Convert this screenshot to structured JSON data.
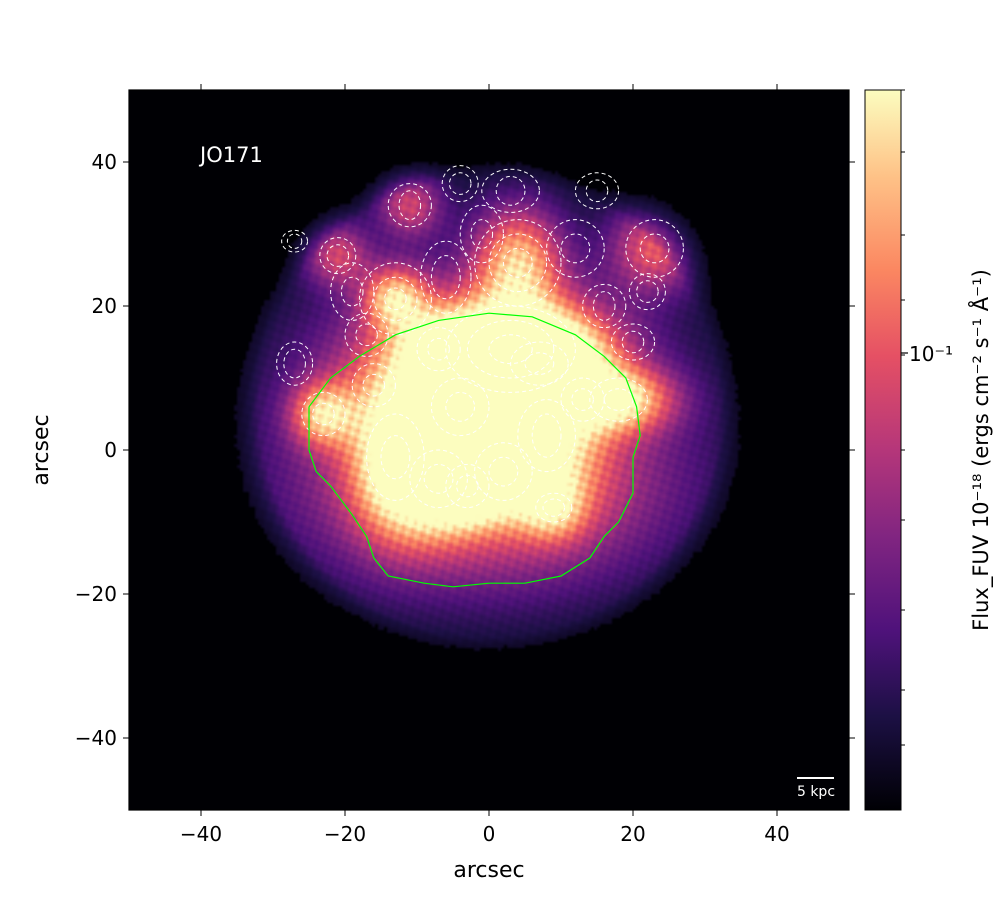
{
  "chart_data": {
    "type": "heatmap",
    "title": "",
    "label": "JO171",
    "xlabel": "arcsec",
    "ylabel": "arcsec",
    "xlim": [
      -50,
      50
    ],
    "ylim": [
      -50,
      50
    ],
    "xticks": [
      -40,
      -20,
      0,
      20,
      40
    ],
    "yticks": [
      -40,
      -20,
      0,
      20,
      40
    ],
    "x_tick_labels": [
      "−40",
      "−20",
      "0",
      "20",
      "40"
    ],
    "y_tick_labels": [
      "−40",
      "−20",
      "0",
      "20",
      "40"
    ],
    "grid": false,
    "scalebar_label": "5 kpc",
    "colorbar": {
      "label": "Flux_FUV 10⁻¹⁸ (ergs cm⁻² s⁻¹ Å⁻¹)",
      "scale": "log",
      "colormap": "magma",
      "tick_label": "10⁻¹",
      "tick_value": 0.1
    },
    "colors": {
      "background": "#000004",
      "galaxy_boundary": "#00ff00",
      "contours": "#ffffff",
      "label_text": "#ffffff"
    },
    "emission_blobs": [
      {
        "x": 3,
        "y": 14,
        "sx": 8,
        "sy": 5,
        "amp": 1.0
      },
      {
        "x": 7,
        "y": 12,
        "sx": 6,
        "sy": 4,
        "amp": 0.9
      },
      {
        "x": -3,
        "y": 10,
        "sx": 10,
        "sy": 6,
        "amp": 0.75
      },
      {
        "x": 4,
        "y": 26,
        "sx": 4,
        "sy": 5,
        "amp": 0.8
      },
      {
        "x": -13,
        "y": -1,
        "sx": 4,
        "sy": 7,
        "amp": 0.85
      },
      {
        "x": -7,
        "y": -4,
        "sx": 4,
        "sy": 5,
        "amp": 0.8
      },
      {
        "x": -3,
        "y": -5,
        "sx": 3,
        "sy": 3,
        "amp": 0.8
      },
      {
        "x": 2,
        "y": -3,
        "sx": 4,
        "sy": 4,
        "amp": 0.75
      },
      {
        "x": 8,
        "y": 2,
        "sx": 5,
        "sy": 6,
        "amp": 0.6
      },
      {
        "x": 18,
        "y": 7,
        "sx": 5,
        "sy": 3,
        "amp": 0.85
      },
      {
        "x": -23,
        "y": 5,
        "sx": 3,
        "sy": 3,
        "amp": 0.75
      },
      {
        "x": -13,
        "y": 21,
        "sx": 3,
        "sy": 3,
        "amp": 0.8
      },
      {
        "x": -7,
        "y": 14,
        "sx": 3,
        "sy": 3,
        "amp": 0.6
      },
      {
        "x": 0,
        "y": -6,
        "sx": 16,
        "sy": 8,
        "amp": 0.4
      },
      {
        "x": -2,
        "y": 2,
        "sx": 15,
        "sy": 12,
        "amp": 0.35
      },
      {
        "x": 23,
        "y": 28,
        "sx": 4,
        "sy": 4,
        "amp": 0.55
      },
      {
        "x": 9,
        "y": -8,
        "sx": 3,
        "sy": 3,
        "amp": 0.5
      },
      {
        "x": -21,
        "y": 27,
        "sx": 3,
        "sy": 3,
        "amp": 0.45
      },
      {
        "x": -11,
        "y": 34,
        "sx": 3,
        "sy": 3,
        "amp": 0.45
      },
      {
        "x": 0,
        "y": 8,
        "sx": 20,
        "sy": 18,
        "amp": 0.18
      }
    ],
    "galaxy_boundary": [
      [
        -25,
        6
      ],
      [
        -22,
        10
      ],
      [
        -18,
        13
      ],
      [
        -13,
        16
      ],
      [
        -7,
        18
      ],
      [
        0,
        19
      ],
      [
        6,
        18.5
      ],
      [
        12,
        16
      ],
      [
        16,
        13
      ],
      [
        19,
        10
      ],
      [
        20.5,
        6
      ],
      [
        21,
        2
      ],
      [
        20,
        -1
      ],
      [
        20,
        -6
      ],
      [
        18,
        -10
      ],
      [
        16,
        -12
      ],
      [
        14,
        -15
      ],
      [
        10,
        -17.5
      ],
      [
        5,
        -18.5
      ],
      [
        0,
        -18.5
      ],
      [
        -5,
        -19
      ],
      [
        -9,
        -18.5
      ],
      [
        -14,
        -17.5
      ],
      [
        -16,
        -15
      ],
      [
        -17,
        -12
      ],
      [
        -19,
        -9
      ],
      [
        -22,
        -5
      ],
      [
        -24,
        -3
      ],
      [
        -25,
        0
      ],
      [
        -25,
        6
      ]
    ],
    "contours": [
      {
        "x": 3,
        "y": 14,
        "rx": [
          3,
          6,
          9
        ],
        "ry": [
          2,
          4,
          6
        ]
      },
      {
        "x": 7,
        "y": 12,
        "rx": [
          2,
          4
        ],
        "ry": [
          1.5,
          3
        ]
      },
      {
        "x": 4,
        "y": 26,
        "rx": [
          2,
          4,
          6
        ],
        "ry": [
          2,
          4,
          6
        ]
      },
      {
        "x": -13,
        "y": 21,
        "rx": [
          1.5,
          3,
          5
        ],
        "ry": [
          1.5,
          3,
          5
        ]
      },
      {
        "x": -13,
        "y": -1,
        "rx": [
          2,
          4
        ],
        "ry": [
          3,
          6
        ]
      },
      {
        "x": -7,
        "y": -4,
        "rx": [
          2,
          4
        ],
        "ry": [
          2,
          4
        ]
      },
      {
        "x": -3,
        "y": -5,
        "rx": [
          1.5,
          3
        ],
        "ry": [
          1.5,
          3
        ]
      },
      {
        "x": 2,
        "y": -3,
        "rx": [
          2,
          4
        ],
        "ry": [
          2,
          4
        ]
      },
      {
        "x": 8,
        "y": 2,
        "rx": [
          2,
          4
        ],
        "ry": [
          3,
          5
        ]
      },
      {
        "x": 18,
        "y": 7,
        "rx": [
          2,
          4
        ],
        "ry": [
          1.5,
          3
        ]
      },
      {
        "x": -23,
        "y": 5,
        "rx": [
          1.5,
          3
        ],
        "ry": [
          1.5,
          3
        ]
      },
      {
        "x": -7,
        "y": 14,
        "rx": [
          1.5,
          3
        ],
        "ry": [
          1.5,
          3
        ]
      },
      {
        "x": -4,
        "y": 6,
        "rx": [
          2,
          4
        ],
        "ry": [
          2,
          4
        ]
      },
      {
        "x": 9,
        "y": -8,
        "rx": [
          1.5,
          2.5
        ],
        "ry": [
          1.2,
          2
        ]
      },
      {
        "x": 23,
        "y": 28,
        "rx": [
          2,
          4
        ],
        "ry": [
          2,
          4
        ]
      },
      {
        "x": -11,
        "y": 34,
        "rx": [
          1.5,
          3
        ],
        "ry": [
          2,
          3
        ]
      },
      {
        "x": -21,
        "y": 27,
        "rx": [
          1.5,
          2.5
        ],
        "ry": [
          1.5,
          2.5
        ]
      },
      {
        "x": -27,
        "y": 29,
        "rx": [
          1,
          1.8
        ],
        "ry": [
          1,
          1.5
        ]
      },
      {
        "x": -27,
        "y": 12,
        "rx": [
          1.5,
          2.5
        ],
        "ry": [
          2,
          3
        ]
      },
      {
        "x": -17,
        "y": 16,
        "rx": [
          1.5,
          3
        ],
        "ry": [
          1.5,
          3
        ]
      },
      {
        "x": -6,
        "y": 24,
        "rx": [
          2,
          3.5
        ],
        "ry": [
          3,
          5
        ]
      },
      {
        "x": 12,
        "y": 28,
        "rx": [
          2,
          4
        ],
        "ry": [
          2,
          4
        ]
      },
      {
        "x": 15,
        "y": 36,
        "rx": [
          1.5,
          3
        ],
        "ry": [
          1.5,
          2.5
        ]
      },
      {
        "x": 3,
        "y": 36,
        "rx": [
          2,
          4
        ],
        "ry": [
          2,
          3
        ]
      },
      {
        "x": -4,
        "y": 37,
        "rx": [
          1.5,
          2.5
        ],
        "ry": [
          1.5,
          2.5
        ]
      },
      {
        "x": 16,
        "y": 20,
        "rx": [
          1.5,
          3
        ],
        "ry": [
          2,
          3
        ]
      },
      {
        "x": 20,
        "y": 15,
        "rx": [
          1.5,
          3
        ],
        "ry": [
          1.5,
          2.5
        ]
      },
      {
        "x": -1,
        "y": 30,
        "rx": [
          1.5,
          3
        ],
        "ry": [
          2,
          4
        ]
      },
      {
        "x": 22,
        "y": 22,
        "rx": [
          1.5,
          2.5
        ],
        "ry": [
          1.5,
          2.5
        ]
      },
      {
        "x": -19,
        "y": 22,
        "rx": [
          1.5,
          3
        ],
        "ry": [
          2,
          4
        ]
      },
      {
        "x": 13,
        "y": 7,
        "rx": [
          1.5,
          3
        ],
        "ry": [
          1.5,
          3
        ]
      },
      {
        "x": -16,
        "y": 9,
        "rx": [
          1.5,
          3
        ],
        "ry": [
          1.5,
          3
        ]
      }
    ]
  }
}
